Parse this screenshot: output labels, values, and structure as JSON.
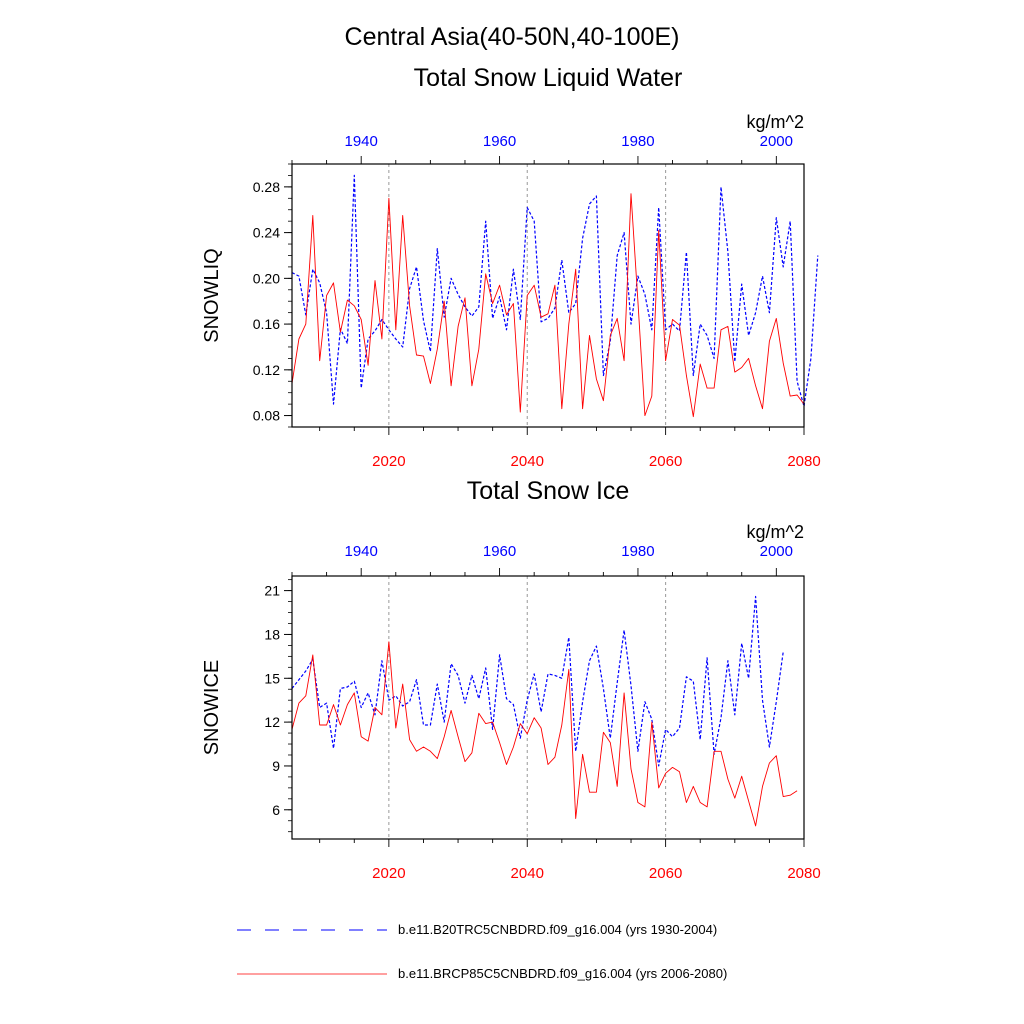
{
  "title": "Central Asia(40-50N,40-100E)",
  "legend": {
    "historical_label": "b.e11.B20TRC5CNBDRD.f09_g16.004 (yrs 1930-2004)",
    "future_label": "b.e11.BRCP85C5CNBDRD.f09_g16.004 (yrs 2006-2080)"
  },
  "colors": {
    "historical": "#0000ff",
    "future": "#ff0000",
    "axis": "#000000",
    "grid": "#999999"
  },
  "chart_data": [
    {
      "type": "line",
      "title": "Total Snow Liquid Water",
      "units": "kg/m^2",
      "ylabel": "SNOWLIQ",
      "ylim": [
        0.07,
        0.3
      ],
      "yticks": [
        0.08,
        0.12,
        0.16,
        0.2,
        0.24,
        0.28
      ],
      "yticklabels": [
        "0.08",
        "0.12",
        "0.16",
        "0.20",
        "0.24",
        "0.28"
      ],
      "bottom_axis": {
        "range": [
          2006,
          2080
        ],
        "ticks": [
          2020,
          2040,
          2060,
          2080
        ],
        "ticklabels": [
          "2020",
          "2040",
          "2060",
          "2080"
        ]
      },
      "top_axis": {
        "range": [
          1930,
          2004
        ],
        "ticks": [
          1940,
          1960,
          1980,
          2000
        ],
        "ticklabels": [
          "1940",
          "1960",
          "1980",
          "2000"
        ]
      },
      "gridlines_x": [
        2020,
        2040,
        2060
      ],
      "series": [
        {
          "key": "historical",
          "style": "dashed",
          "x_start": 1930,
          "values": [
            0.205,
            0.202,
            0.168,
            0.208,
            0.196,
            0.17,
            0.09,
            0.156,
            0.143,
            0.29,
            0.104,
            0.147,
            0.154,
            0.164,
            0.155,
            0.147,
            0.14,
            0.191,
            0.21,
            0.163,
            0.136,
            0.226,
            0.166,
            0.2,
            0.186,
            0.175,
            0.167,
            0.175,
            0.25,
            0.165,
            0.184,
            0.155,
            0.208,
            0.164,
            0.262,
            0.25,
            0.162,
            0.165,
            0.174,
            0.216,
            0.17,
            0.178,
            0.235,
            0.265,
            0.272,
            0.115,
            0.145,
            0.22,
            0.24,
            0.16,
            0.202,
            0.186,
            0.155,
            0.262,
            0.155,
            0.16,
            0.154,
            0.223,
            0.115,
            0.16,
            0.15,
            0.13,
            0.28,
            0.223,
            0.127,
            0.195,
            0.15,
            0.17,
            0.202,
            0.17,
            0.253,
            0.21,
            0.25,
            0.11,
            0.088,
            0.13,
            0.22
          ]
        },
        {
          "key": "future",
          "style": "solid",
          "x_start": 2006,
          "values": [
            0.108,
            0.147,
            0.16,
            0.255,
            0.128,
            0.185,
            0.196,
            0.153,
            0.181,
            0.176,
            0.164,
            0.124,
            0.198,
            0.147,
            0.27,
            0.155,
            0.255,
            0.176,
            0.133,
            0.132,
            0.108,
            0.138,
            0.18,
            0.106,
            0.158,
            0.183,
            0.106,
            0.138,
            0.204,
            0.178,
            0.194,
            0.168,
            0.178,
            0.083,
            0.185,
            0.194,
            0.166,
            0.169,
            0.194,
            0.086,
            0.16,
            0.208,
            0.086,
            0.15,
            0.112,
            0.093,
            0.15,
            0.165,
            0.128,
            0.274,
            0.18,
            0.08,
            0.097,
            0.242,
            0.128,
            0.164,
            0.159,
            0.115,
            0.079,
            0.125,
            0.104,
            0.104,
            0.155,
            0.158,
            0.118,
            0.122,
            0.13,
            0.106,
            0.086,
            0.145,
            0.165,
            0.126,
            0.097,
            0.098,
            0.09
          ]
        }
      ]
    },
    {
      "type": "line",
      "title": "Total Snow Ice",
      "units": "kg/m^2",
      "ylabel": "SNOWICE",
      "ylim": [
        4,
        22
      ],
      "yticks": [
        6,
        9,
        12,
        15,
        18,
        21
      ],
      "yticklabels": [
        "6",
        "9",
        "12",
        "15",
        "18",
        "21"
      ],
      "bottom_axis": {
        "range": [
          2006,
          2080
        ],
        "ticks": [
          2020,
          2040,
          2060,
          2080
        ],
        "ticklabels": [
          "2020",
          "2040",
          "2060",
          "2080"
        ]
      },
      "top_axis": {
        "range": [
          1930,
          2004
        ],
        "ticks": [
          1940,
          1960,
          1980,
          2000
        ],
        "ticklabels": [
          "1940",
          "1960",
          "1980",
          "2000"
        ]
      },
      "gridlines_x": [
        2020,
        2040,
        2060
      ],
      "series": [
        {
          "key": "historical",
          "style": "dashed",
          "x_start": 1930,
          "values": [
            14.3,
            14.9,
            15.5,
            16.3,
            13.0,
            13.3,
            10.2,
            14.3,
            14.4,
            14.8,
            13.0,
            14.0,
            12.5,
            16.2,
            13.5,
            13.8,
            13.1,
            13.4,
            14.9,
            11.8,
            11.8,
            14.6,
            12.0,
            16.0,
            15.2,
            13.3,
            15.2,
            13.6,
            15.7,
            11.5,
            16.6,
            13.6,
            13.2,
            10.9,
            13.5,
            15.3,
            12.7,
            15.3,
            15.2,
            15.0,
            17.8,
            10.0,
            13.4,
            16.2,
            17.2,
            14.3,
            10.9,
            14.7,
            18.3,
            14.5,
            10.0,
            13.4,
            12.2,
            9.0,
            11.5,
            11.0,
            11.6,
            15.1,
            14.8,
            10.8,
            16.4,
            9.8,
            12.3,
            16.2,
            12.5,
            17.4,
            15.0,
            20.6,
            13.5,
            10.3,
            13.4,
            16.8
          ]
        },
        {
          "key": "future",
          "style": "solid",
          "x_start": 2006,
          "values": [
            11.5,
            13.3,
            13.8,
            16.6,
            11.8,
            11.8,
            13.2,
            11.8,
            13.2,
            14.0,
            11.0,
            10.7,
            13.0,
            12.5,
            17.5,
            11.6,
            14.6,
            10.8,
            10.0,
            10.3,
            10.0,
            9.5,
            11.0,
            12.8,
            11.0,
            9.3,
            9.9,
            12.6,
            11.9,
            12.0,
            10.6,
            9.1,
            10.3,
            11.9,
            11.2,
            12.3,
            11.6,
            9.1,
            9.6,
            11.8,
            15.6,
            5.4,
            9.8,
            7.2,
            7.2,
            11.3,
            10.6,
            7.6,
            14.0,
            8.8,
            6.5,
            6.2,
            12.0,
            7.5,
            8.5,
            8.9,
            8.6,
            6.5,
            7.6,
            6.5,
            6.2,
            10.0,
            10.0,
            8.1,
            6.8,
            8.3,
            6.6,
            4.9,
            7.6,
            9.2,
            9.7,
            6.9,
            7.0,
            7.3
          ]
        }
      ]
    }
  ]
}
